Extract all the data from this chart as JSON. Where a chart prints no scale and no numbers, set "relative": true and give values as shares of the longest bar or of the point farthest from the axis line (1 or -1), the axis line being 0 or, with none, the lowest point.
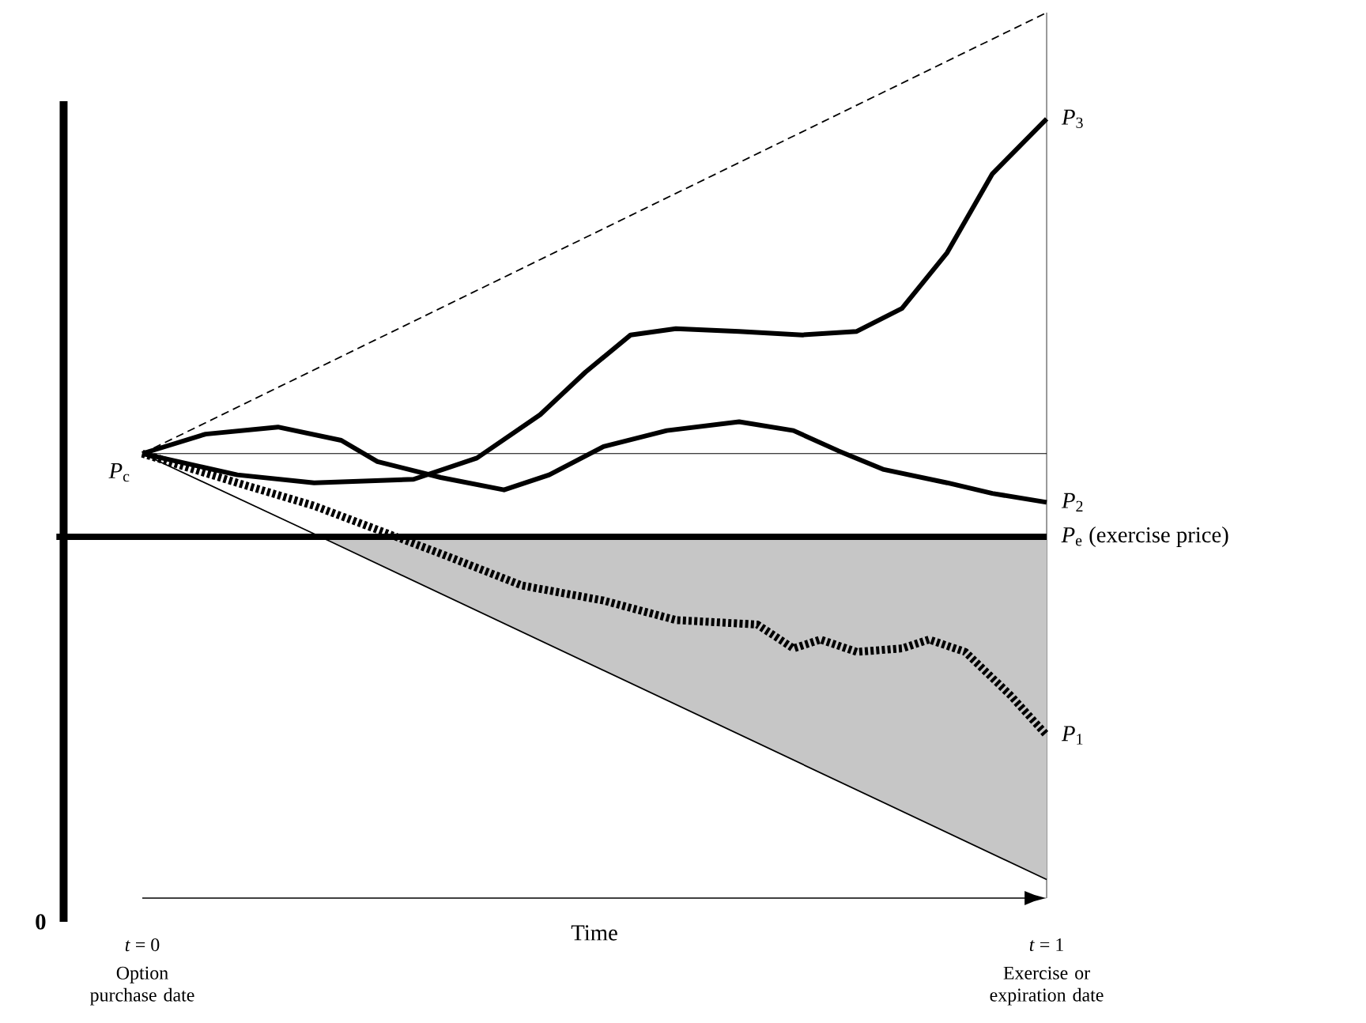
{
  "chart_data": {
    "type": "line",
    "relative": true,
    "xlabel": "Time",
    "xlim": [
      0,
      1
    ],
    "xticks": [
      {
        "value": 0,
        "label": "*t* = 0"
      },
      {
        "value": 1,
        "label": "*t* = 1"
      }
    ],
    "series": [
      {
        "color": "#000000",
        "line_style": "dashed",
        "x": [
          0,
          1
        ],
        "values": [
          0.502,
          1
        ]
      },
      {
        "color": "#000000",
        "line_style": "solid",
        "x": [
          0,
          0.197,
          1
        ],
        "values": [
          0.502,
          0.408,
          0.021
        ],
        "lower": [
          null,
          0.408,
          0.021
        ],
        "upper": [
          null,
          0.408,
          0.408
        ]
      },
      {
        "name": "*P*$_{2}$",
        "color": "#000000",
        "line_style": "solid",
        "x": [
          0,
          0.07,
          0.15,
          0.22,
          0.26,
          0.33,
          0.4,
          0.45,
          0.51,
          0.58,
          0.66,
          0.72,
          0.77,
          0.82,
          0.89,
          0.94,
          1
        ],
        "values": [
          0.502,
          0.524,
          0.532,
          0.517,
          0.493,
          0.475,
          0.461,
          0.478,
          0.51,
          0.528,
          0.538,
          0.528,
          0.505,
          0.484,
          0.469,
          0.457,
          0.447
        ]
      },
      {
        "name": "*P*$_{3}$",
        "color": "#000000",
        "line_style": "solid",
        "x": [
          0,
          0.105,
          0.19,
          0.3,
          0.37,
          0.44,
          0.49,
          0.54,
          0.59,
          0.66,
          0.73,
          0.79,
          0.84,
          0.89,
          0.94,
          1
        ],
        "values": [
          0.502,
          0.478,
          0.469,
          0.473,
          0.497,
          0.546,
          0.594,
          0.636,
          0.643,
          0.64,
          0.636,
          0.64,
          0.666,
          0.729,
          0.818,
          0.88
        ]
      },
      {
        "name": "*P*$_{1}$",
        "color": "#000000",
        "line_style": "dashed",
        "x": [
          0,
          0.105,
          0.19,
          0.26,
          0.33,
          0.42,
          0.51,
          0.59,
          0.68,
          0.72,
          0.75,
          0.79,
          0.84,
          0.87,
          0.91,
          0.96,
          1
        ],
        "values": [
          0.502,
          0.469,
          0.443,
          0.416,
          0.389,
          0.353,
          0.336,
          0.314,
          0.309,
          0.282,
          0.292,
          0.278,
          0.282,
          0.292,
          0.278,
          0.229,
          0.184
        ]
      }
    ],
    "ref_lines": [
      {
        "axis": "y",
        "value": 0.408,
        "label": "*P*$_{e}$   (exercise price)",
        "color": "#000000"
      },
      {
        "axis": "y",
        "value": 0.502,
        "label": "*P*$_{c}$",
        "color": "#000000"
      }
    ],
    "annotations": [
      "Option purchase date",
      "Exercise or expiration date",
      "0"
    ],
    "marker": "none"
  }
}
